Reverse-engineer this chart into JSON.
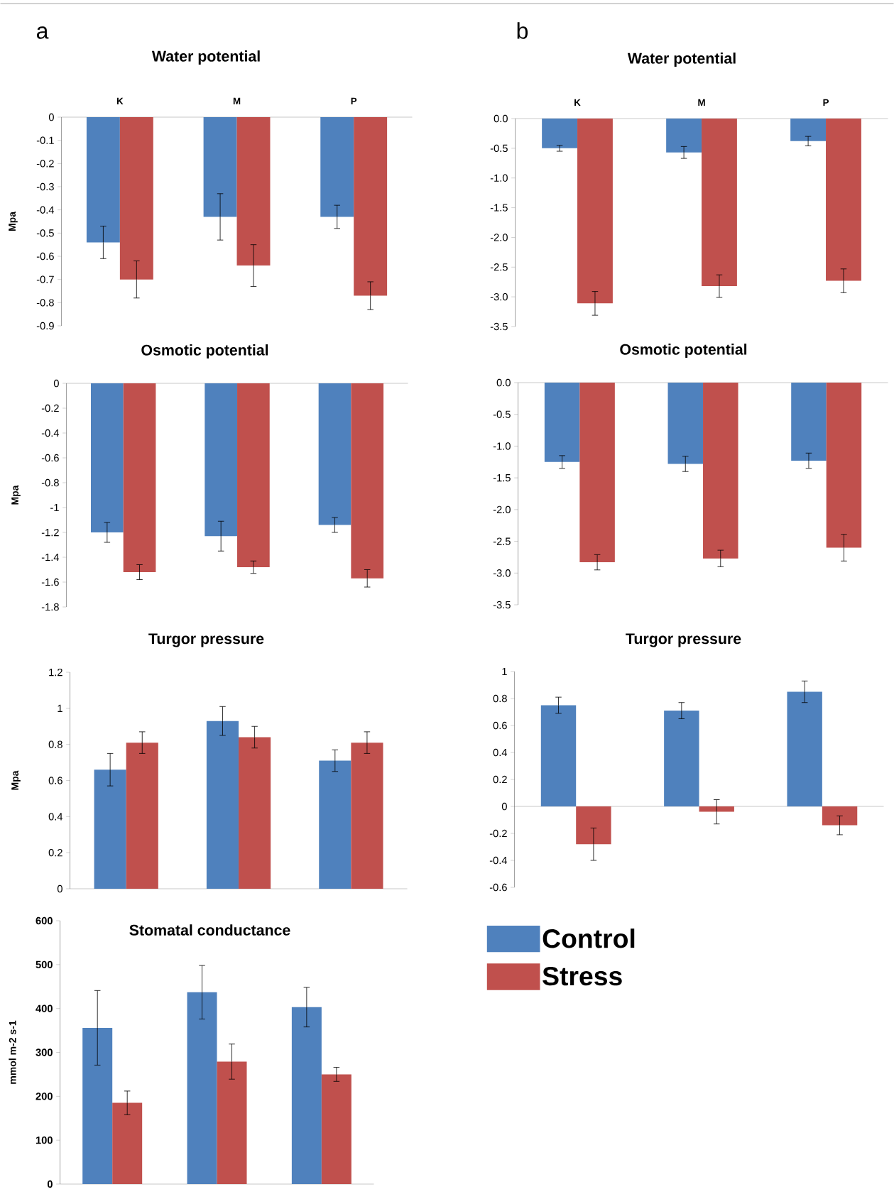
{
  "chart_data": [
    {
      "type": "bar",
      "title": "Water potential",
      "ylabel": "Mpa",
      "annotations": [
        "a"
      ],
      "categories": [
        "K",
        "M",
        "P"
      ],
      "ylim": [
        -0.9,
        0
      ],
      "yticks": [
        0,
        -0.1,
        -0.2,
        -0.3,
        -0.4,
        -0.5,
        -0.6,
        -0.7,
        -0.8,
        -0.9
      ],
      "series": [
        {
          "color": "#4f81bd",
          "values": [
            -0.54,
            -0.43,
            -0.43
          ],
          "errors": [
            0.07,
            0.1,
            0.05
          ]
        },
        {
          "color": "#c0504d",
          "values": [
            -0.7,
            -0.64,
            -0.77
          ],
          "errors": [
            0.08,
            0.09,
            0.06
          ]
        }
      ]
    },
    {
      "type": "bar",
      "title": "Water potential",
      "annotations": [
        "b"
      ],
      "categories": [
        "K",
        "M",
        "P"
      ],
      "ylim": [
        -3.5,
        0
      ],
      "yticks": [
        {
          "value": 0,
          "label": "0.0"
        },
        -0.5,
        {
          "value": -1,
          "label": "-1.0"
        },
        -1.5,
        {
          "value": -2,
          "label": "-2.0"
        },
        -2.5,
        {
          "value": -3,
          "label": "-3.0"
        },
        -3.5
      ],
      "series": [
        {
          "color": "#4f81bd",
          "values": [
            -0.5,
            -0.57,
            -0.38
          ],
          "errors": [
            0.05,
            0.1,
            0.08
          ]
        },
        {
          "color": "#c0504d",
          "values": [
            -3.11,
            -2.82,
            -2.73
          ],
          "errors": [
            0.2,
            0.19,
            0.2
          ]
        }
      ]
    },
    {
      "type": "bar",
      "title": "Osmotic potential",
      "ylabel": "Mpa",
      "categories": [
        null,
        null,
        null
      ],
      "tick_labels": "y",
      "ylim": [
        -1.8,
        0
      ],
      "yticks": [
        0,
        -0.2,
        -0.4,
        -0.6,
        -0.8,
        -1,
        -1.2,
        -1.4,
        -1.6,
        -1.8
      ],
      "series": [
        {
          "color": "#4f81bd",
          "values": [
            -1.2,
            -1.23,
            -1.14
          ],
          "errors": [
            0.08,
            0.12,
            0.06
          ]
        },
        {
          "color": "#c0504d",
          "values": [
            -1.52,
            -1.48,
            -1.57
          ],
          "errors": [
            0.06,
            0.05,
            0.07
          ]
        }
      ]
    },
    {
      "type": "bar",
      "title": "Osmotic potential",
      "categories": [
        null,
        null,
        null
      ],
      "tick_labels": "y",
      "ylim": [
        -3.5,
        0
      ],
      "yticks": [
        {
          "value": 0,
          "label": "0.0"
        },
        -0.5,
        {
          "value": -1,
          "label": "-1.0"
        },
        -1.5,
        {
          "value": -2,
          "label": "-2.0"
        },
        -2.5,
        {
          "value": -3,
          "label": "-3.0"
        },
        -3.5
      ],
      "series": [
        {
          "color": "#4f81bd",
          "values": [
            -1.25,
            -1.28,
            -1.23
          ],
          "errors": [
            0.1,
            0.12,
            0.12
          ]
        },
        {
          "color": "#c0504d",
          "values": [
            -2.83,
            -2.77,
            -2.6
          ],
          "errors": [
            0.12,
            0.13,
            0.21
          ]
        }
      ]
    },
    {
      "type": "bar",
      "title": "Turgor pressure",
      "ylabel": "Mpa",
      "categories": [
        null,
        null,
        null
      ],
      "tick_labels": "y",
      "ylim": [
        0,
        1.2
      ],
      "yticks": [
        0,
        0.2,
        0.4,
        0.6,
        0.8,
        1,
        1.2
      ],
      "series": [
        {
          "color": "#4f81bd",
          "values": [
            0.66,
            0.93,
            0.71
          ],
          "errors": [
            0.09,
            0.08,
            0.06
          ]
        },
        {
          "color": "#c0504d",
          "values": [
            0.81,
            0.84,
            0.81
          ],
          "errors": [
            0.06,
            0.06,
            0.06
          ]
        }
      ]
    },
    {
      "type": "bar",
      "title": "Turgor pressure",
      "categories": [
        null,
        null,
        null
      ],
      "tick_labels": "y",
      "legend": "bottom",
      "ylim": [
        -0.6,
        1
      ],
      "yticks": [
        -0.6,
        -0.4,
        -0.2,
        0,
        0.2,
        0.4,
        0.6,
        0.8,
        1
      ],
      "series": [
        {
          "name": "Control",
          "color": "#4f81bd",
          "values": [
            0.75,
            0.71,
            0.85
          ],
          "errors": [
            0.06,
            0.06,
            0.08
          ]
        },
        {
          "name": "Stress",
          "color": "#c0504d",
          "values": [
            -0.28,
            -0.04,
            -0.14
          ],
          "errors": [
            0.12,
            0.09,
            0.07
          ]
        }
      ]
    },
    {
      "type": "bar",
      "title": "Stomatal conductance",
      "ylabel": "mmol m-2 s-1",
      "categories": [
        null,
        null,
        null
      ],
      "tick_labels": "y",
      "ylim": [
        0,
        600
      ],
      "yticks": [
        0,
        100,
        200,
        300,
        400,
        500,
        600
      ],
      "series": [
        {
          "color": "#4f81bd",
          "values": [
            356,
            437,
            403
          ],
          "errors": [
            85,
            61,
            45
          ]
        },
        {
          "color": "#c0504d",
          "values": [
            185,
            279,
            250
          ],
          "errors": [
            27,
            40,
            16
          ]
        }
      ]
    }
  ]
}
